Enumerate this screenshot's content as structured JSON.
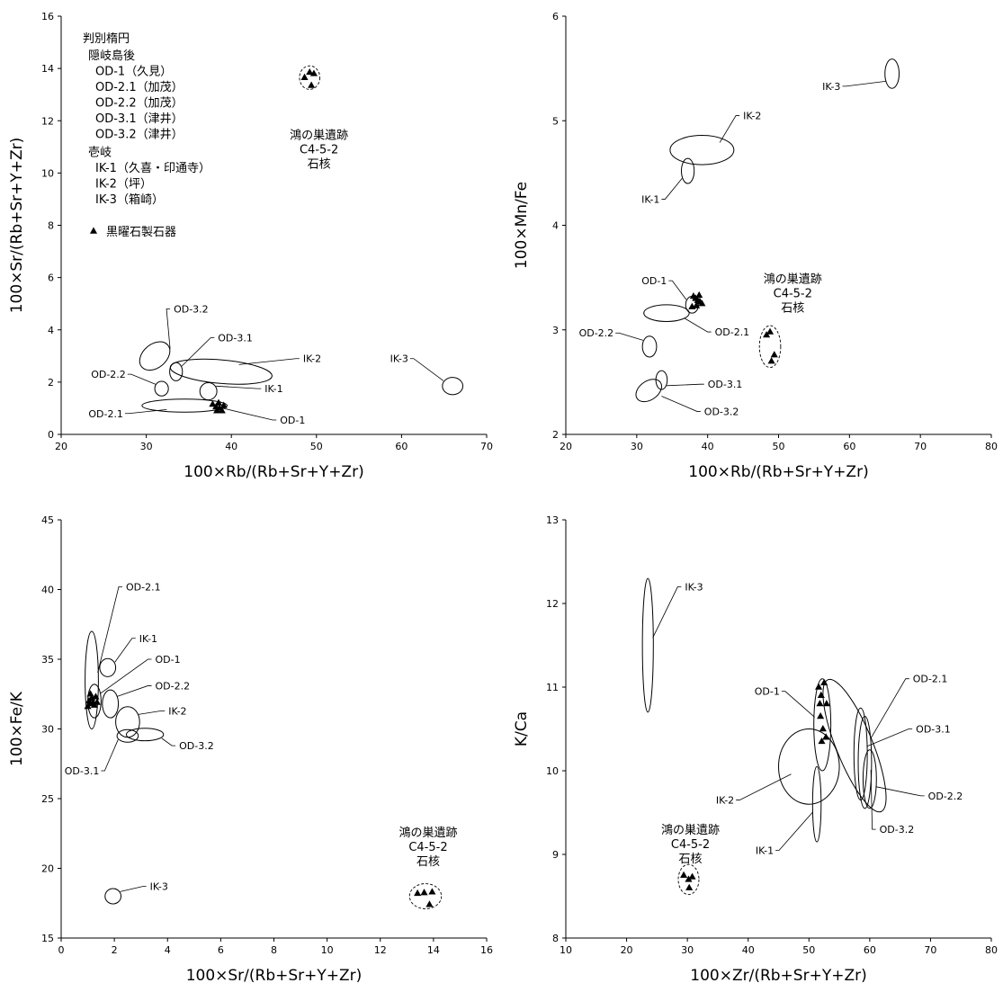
{
  "legend": {
    "title": "判別楕円",
    "group_oki": "隠岐島後",
    "oki_items": [
      "OD-1（久見）",
      "OD-2.1（加茂）",
      "OD-2.2（加茂）",
      "OD-3.1（津井）",
      "OD-3.2（津井）"
    ],
    "group_iki": "壱岐",
    "iki_items": [
      "IK-1（久喜・印通寺）",
      "IK-2（坪）",
      "IK-3（箱崎）"
    ],
    "marker_label": "黒曜石製石器"
  },
  "site_label": [
    "鴻の巣遺跡",
    "C4-5-2",
    "石核"
  ],
  "chart_data": [
    {
      "type": "scatter",
      "xlabel": "100×Rb/(Rb+Sr+Y+Zr)",
      "ylabel": "100×Sr/(Rb+Sr+Y+Zr)",
      "xlim": [
        20,
        70
      ],
      "ylim": [
        0,
        16
      ],
      "xticks": [
        20,
        30,
        40,
        50,
        60,
        70
      ],
      "yticks": [
        0,
        2,
        4,
        6,
        8,
        10,
        12,
        14,
        16
      ],
      "ellipses": [
        {
          "name": "OD-3.2",
          "cx": 31.0,
          "cy": 3.0,
          "rx": 2.0,
          "ry": 0.45,
          "angle": -40,
          "label_at": [
            32.8,
            4.8
          ]
        },
        {
          "name": "OD-3.1",
          "cx": 33.5,
          "cy": 2.4,
          "rx": 0.75,
          "ry": 0.35,
          "angle": 0,
          "label_at": [
            38.0,
            3.7
          ]
        },
        {
          "name": "IK-2",
          "cx": 38.8,
          "cy": 2.4,
          "rx": 6.0,
          "ry": 0.45,
          "angle": 5,
          "label_at": [
            48.0,
            2.9
          ]
        },
        {
          "name": "OD-2.2",
          "cx": 31.8,
          "cy": 1.75,
          "rx": 0.8,
          "ry": 0.28,
          "angle": 0,
          "label_at": [
            27.8,
            2.3
          ]
        },
        {
          "name": "IK-1",
          "cx": 37.3,
          "cy": 1.65,
          "rx": 1.0,
          "ry": 0.33,
          "angle": 0,
          "label_at": [
            43.5,
            1.75
          ]
        },
        {
          "name": "OD-2.1",
          "cx": 34.5,
          "cy": 1.1,
          "rx": 5.0,
          "ry": 0.25,
          "angle": 0,
          "label_at": [
            27.5,
            0.8
          ]
        },
        {
          "name": "IK-3",
          "cx": 66.0,
          "cy": 1.85,
          "rx": 1.2,
          "ry": 0.33,
          "angle": 0,
          "label_at": [
            61.0,
            2.9
          ]
        }
      ],
      "leader_labels": [
        {
          "name": "OD-1",
          "label_at": [
            45.5,
            0.55
          ],
          "target": [
            39.0,
            1.0
          ]
        }
      ],
      "points_x": [
        37.8,
        38.2,
        38.6,
        38.3,
        38.9,
        39.1,
        38.5
      ],
      "points_y": [
        1.15,
        1.05,
        1.0,
        0.9,
        0.9,
        1.1,
        1.2
      ],
      "site_points_x": [
        48.6,
        49.2,
        49.7,
        49.4
      ],
      "site_points_y": [
        13.65,
        13.85,
        13.8,
        13.35
      ],
      "site_ring": {
        "cx": 49.2,
        "cy": 13.65,
        "rx": 1.2,
        "ry": 0.45
      },
      "site_text_at": [
        50.3,
        11.3
      ],
      "show_legend": true
    },
    {
      "type": "scatter",
      "xlabel": "100×Rb/(Rb+Sr+Y+Zr)",
      "ylabel": "100×Mn/Fe",
      "xlim": [
        20,
        80
      ],
      "ylim": [
        2,
        6
      ],
      "xticks": [
        20,
        30,
        40,
        50,
        60,
        70,
        80
      ],
      "yticks": [
        2,
        3,
        4,
        5,
        6
      ],
      "ellipses": [
        {
          "name": "IK-3",
          "cx": 66.0,
          "cy": 5.45,
          "rx": 1.0,
          "ry": 0.14,
          "angle": 0,
          "label_at": [
            59.0,
            5.33
          ]
        },
        {
          "name": "IK-2",
          "cx": 39.2,
          "cy": 4.72,
          "rx": 4.5,
          "ry": 0.14,
          "angle": 0,
          "label_at": [
            44.5,
            5.05
          ]
        },
        {
          "name": "IK-1",
          "cx": 37.2,
          "cy": 4.52,
          "rx": 0.9,
          "ry": 0.12,
          "angle": 0,
          "label_at": [
            33.5,
            4.25
          ]
        },
        {
          "name": "OD-1",
          "cx": 37.8,
          "cy": 3.24,
          "rx": 0.9,
          "ry": 0.08,
          "angle": 0,
          "label_at": [
            34.5,
            3.47
          ]
        },
        {
          "name": "OD-2.1",
          "cx": 34.2,
          "cy": 3.16,
          "rx": 3.2,
          "ry": 0.08,
          "angle": 0,
          "label_at": [
            40.5,
            2.98
          ]
        },
        {
          "name": "OD-2.2",
          "cx": 31.8,
          "cy": 2.84,
          "rx": 1.0,
          "ry": 0.1,
          "angle": 0,
          "label_at": [
            27.0,
            2.97
          ]
        },
        {
          "name": "OD-3.1",
          "cx": 33.5,
          "cy": 2.52,
          "rx": 0.8,
          "ry": 0.09,
          "angle": 0,
          "label_at": [
            39.5,
            2.48
          ]
        },
        {
          "name": "OD-3.2",
          "cx": 31.7,
          "cy": 2.42,
          "rx": 2.0,
          "ry": 0.09,
          "angle": -35,
          "label_at": [
            39.0,
            2.22
          ]
        }
      ],
      "leader_labels": [],
      "points_x": [
        38.0,
        38.3,
        38.6,
        38.9,
        39.2,
        38.4,
        37.8,
        38.8
      ],
      "points_y": [
        3.32,
        3.3,
        3.28,
        3.27,
        3.25,
        3.23,
        3.22,
        3.33
      ],
      "site_points_x": [
        48.3,
        48.8,
        49.4,
        49.0
      ],
      "site_points_y": [
        2.95,
        2.98,
        2.76,
        2.7
      ],
      "site_ring": {
        "cx": 48.8,
        "cy": 2.84,
        "rx": 1.5,
        "ry": 0.2
      },
      "site_text_at": [
        52.0,
        3.45
      ],
      "show_legend": false
    },
    {
      "type": "scatter",
      "xlabel": "100×Sr/(Rb+Sr+Y+Zr)",
      "ylabel": "100×Fe/K",
      "xlim": [
        0,
        16
      ],
      "ylim": [
        15,
        45
      ],
      "xticks": [
        0,
        2,
        4,
        6,
        8,
        10,
        12,
        14,
        16
      ],
      "yticks": [
        15,
        20,
        25,
        30,
        35,
        40,
        45
      ],
      "ellipses": [
        {
          "name": "OD-2.1",
          "cx": 1.15,
          "cy": 33.5,
          "rx": 0.25,
          "ry": 3.5,
          "angle": 0,
          "label_at": [
            2.3,
            40.2
          ]
        },
        {
          "name": "IK-1",
          "cx": 1.75,
          "cy": 34.4,
          "rx": 0.3,
          "ry": 0.65,
          "angle": 0,
          "label_at": [
            2.8,
            36.5
          ]
        },
        {
          "name": "OD-1",
          "cx": 1.25,
          "cy": 32.0,
          "rx": 0.25,
          "ry": 1.2,
          "angle": 0,
          "label_at": [
            3.4,
            35.0
          ]
        },
        {
          "name": "OD-2.2",
          "cx": 1.85,
          "cy": 31.8,
          "rx": 0.3,
          "ry": 1.0,
          "angle": 0,
          "label_at": [
            3.4,
            33.1
          ]
        },
        {
          "name": "IK-2",
          "cx": 2.5,
          "cy": 30.5,
          "rx": 0.45,
          "ry": 1.1,
          "angle": 0,
          "label_at": [
            3.9,
            31.3
          ]
        },
        {
          "name": "OD-3.2",
          "cx": 3.15,
          "cy": 29.6,
          "rx": 0.7,
          "ry": 0.45,
          "angle": 0,
          "label_at": [
            4.3,
            28.8
          ]
        },
        {
          "name": "OD-3.1",
          "cx": 2.5,
          "cy": 29.5,
          "rx": 0.4,
          "ry": 0.45,
          "angle": 0,
          "label_at": [
            1.5,
            27.0
          ]
        },
        {
          "name": "IK-3",
          "cx": 1.95,
          "cy": 18.0,
          "rx": 0.3,
          "ry": 0.55,
          "angle": 0,
          "label_at": [
            3.2,
            18.7
          ]
        }
      ],
      "leader_labels": [],
      "points_x": [
        1.0,
        1.1,
        1.15,
        1.2,
        1.3,
        1.05,
        1.25,
        1.1,
        1.35
      ],
      "points_y": [
        31.6,
        31.8,
        32.2,
        31.9,
        32.3,
        32.0,
        31.7,
        32.5,
        31.9
      ],
      "site_points_x": [
        13.4,
        13.65,
        13.95,
        13.85
      ],
      "site_points_y": [
        18.2,
        18.25,
        18.3,
        17.4
      ],
      "site_ring": {
        "cx": 13.7,
        "cy": 18.0,
        "rx": 0.6,
        "ry": 0.9,
        "angle": 0
      },
      "site_text_at": [
        13.8,
        22.3
      ],
      "show_legend": false
    },
    {
      "type": "scatter",
      "xlabel": "100×Zr/(Rb+Sr+Y+Zr)",
      "ylabel": "K/Ca",
      "xlim": [
        10,
        80
      ],
      "ylim": [
        8,
        13
      ],
      "xticks": [
        10,
        20,
        30,
        40,
        50,
        60,
        70,
        80
      ],
      "yticks": [
        8,
        9,
        10,
        11,
        12,
        13
      ],
      "ellipses": [
        {
          "name": "IK-3",
          "cx": 23.5,
          "cy": 11.5,
          "rx": 0.9,
          "ry": 0.8,
          "angle": 0,
          "label_at": [
            29.0,
            12.2
          ]
        },
        {
          "name": "OD-1",
          "cx": 52.2,
          "cy": 10.55,
          "rx": 1.4,
          "ry": 0.55,
          "angle": 0,
          "label_at": [
            45.5,
            10.95
          ]
        },
        {
          "name": "OD-2.1",
          "cx": 57.5,
          "cy": 10.3,
          "rx": 3.0,
          "ry": 0.85,
          "angle": -22,
          "label_at": [
            66.5,
            11.1
          ]
        },
        {
          "name": "OD-3.1",
          "cx": 58.5,
          "cy": 10.2,
          "rx": 1.1,
          "ry": 0.55,
          "angle": 0,
          "label_at": [
            67.0,
            10.5
          ]
        },
        {
          "name": "OD-2.2",
          "cx": 60.0,
          "cy": 9.9,
          "rx": 1.1,
          "ry": 0.35,
          "angle": 0,
          "label_at": [
            69.0,
            9.7
          ]
        },
        {
          "name": "IK-2",
          "cx": 50.0,
          "cy": 10.05,
          "rx": 5.0,
          "ry": 0.45,
          "angle": 0,
          "label_at": [
            38.0,
            9.65
          ]
        },
        {
          "name": "IK-1",
          "cx": 51.3,
          "cy": 9.6,
          "rx": 0.7,
          "ry": 0.45,
          "angle": 0,
          "label_at": [
            44.5,
            9.05
          ]
        },
        {
          "name": "OD-3.2",
          "cx": 59.2,
          "cy": 10.1,
          "rx": 1.1,
          "ry": 0.55,
          "angle": 0,
          "label_at": [
            61.0,
            9.3
          ]
        }
      ],
      "leader_labels": [],
      "points_x": [
        51.6,
        52.0,
        52.5,
        52.9,
        51.9,
        52.3,
        52.8,
        52.1,
        51.8
      ],
      "points_y": [
        11.0,
        10.9,
        11.05,
        10.8,
        10.65,
        10.5,
        10.4,
        10.35,
        10.8
      ],
      "site_points_x": [
        29.4,
        30.2,
        30.8,
        30.3
      ],
      "site_points_y": [
        8.75,
        8.7,
        8.73,
        8.6
      ],
      "site_ring": {
        "cx": 30.2,
        "cy": 8.7,
        "rx": 1.7,
        "ry": 0.18
      },
      "site_text_at": [
        30.5,
        9.25
      ],
      "show_legend": false
    }
  ]
}
